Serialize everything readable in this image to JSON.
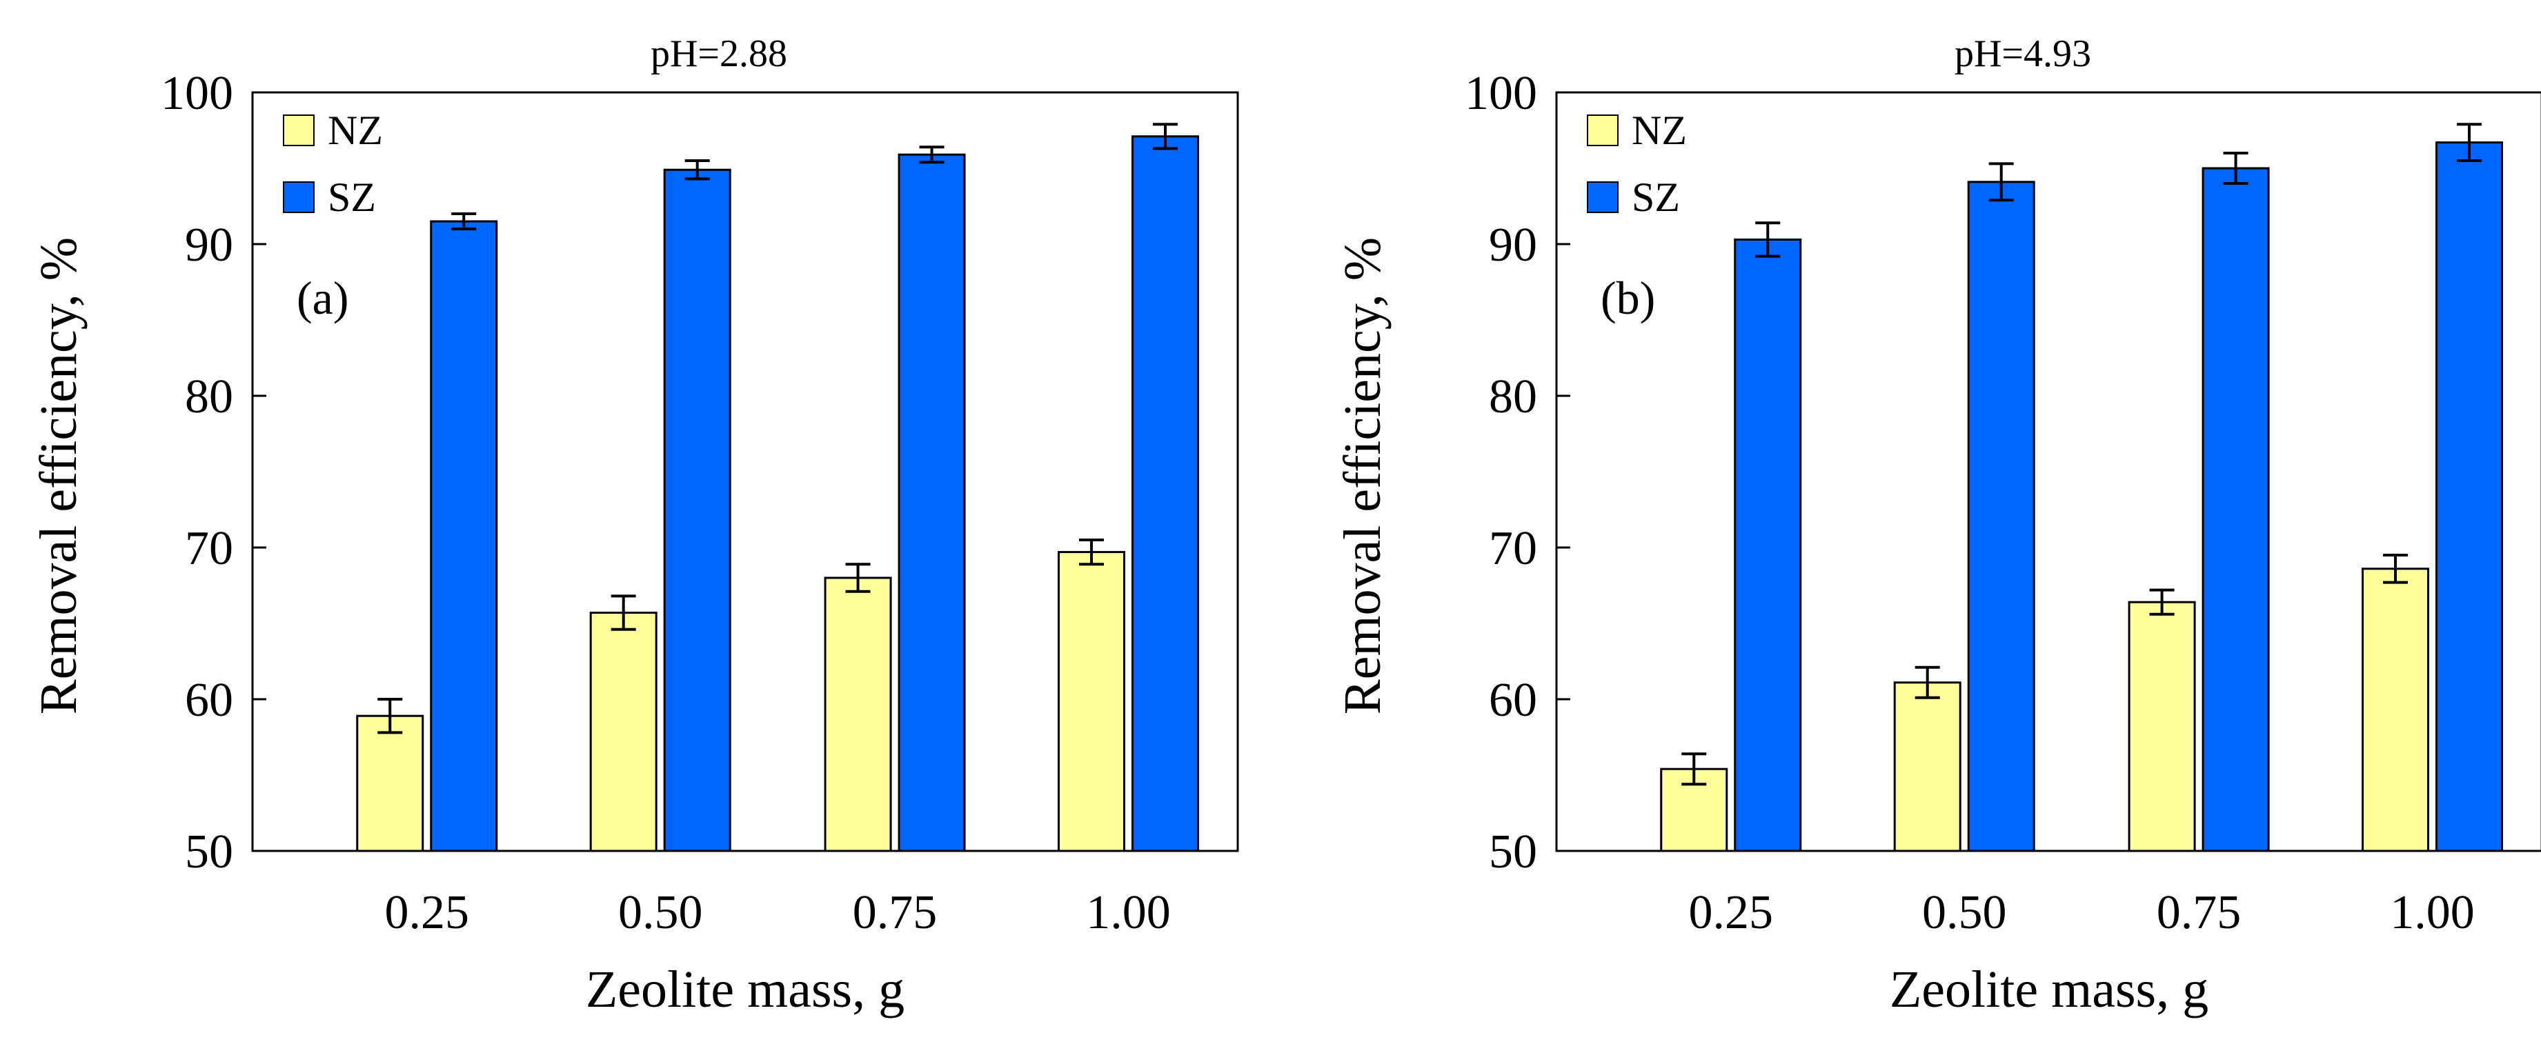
{
  "chart_data": [
    {
      "type": "bar",
      "panel_label": "(a)",
      "title": "pH=2.88",
      "xlabel": "Zeolite mass, g",
      "ylabel": "Removal efficiency, %",
      "categories": [
        "0.25",
        "0.50",
        "0.75",
        "1.00"
      ],
      "ylim": [
        50,
        100
      ],
      "yticks": [
        "50",
        "60",
        "70",
        "80",
        "90",
        "100"
      ],
      "legend_position": "top-left",
      "series": [
        {
          "name": "NZ",
          "color": "#FFFF99",
          "values": [
            58.9,
            65.7,
            68.0,
            69.7
          ],
          "errors": [
            1.1,
            1.1,
            0.9,
            0.8
          ]
        },
        {
          "name": "SZ",
          "color": "#0066FF",
          "values": [
            91.5,
            94.9,
            95.9,
            97.1
          ],
          "errors": [
            0.5,
            0.6,
            0.5,
            0.8
          ]
        }
      ]
    },
    {
      "type": "bar",
      "panel_label": "(b)",
      "title": "pH=4.93",
      "xlabel": "Zeolite mass, g",
      "ylabel": "Removal efficiency, %",
      "categories": [
        "0.25",
        "0.50",
        "0.75",
        "1.00"
      ],
      "ylim": [
        50,
        100
      ],
      "yticks": [
        "50",
        "60",
        "70",
        "80",
        "90",
        "100"
      ],
      "legend_position": "top-left",
      "series": [
        {
          "name": "NZ",
          "color": "#FFFF99",
          "values": [
            55.4,
            61.1,
            66.4,
            68.6
          ],
          "errors": [
            1.0,
            1.0,
            0.8,
            0.9
          ]
        },
        {
          "name": "SZ",
          "color": "#0066FF",
          "values": [
            90.3,
            94.1,
            95.0,
            96.7
          ],
          "errors": [
            1.1,
            1.2,
            1.0,
            1.2
          ]
        }
      ]
    }
  ]
}
